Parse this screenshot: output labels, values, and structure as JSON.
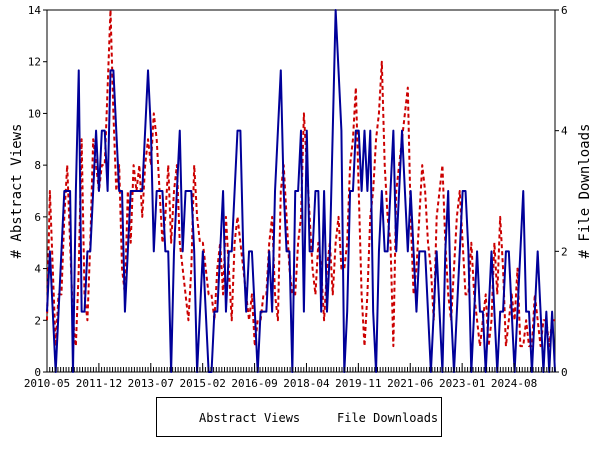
{
  "chart_data": {
    "type": "line",
    "title": "",
    "xlabel": "",
    "ylabel": "# Abstract Views",
    "y2label": "# File Downloads",
    "xlim": [
      "2010-05",
      "2025-11"
    ],
    "ylim": [
      0,
      14
    ],
    "y2lim": [
      0,
      6
    ],
    "x_ticks": [
      "2010-05",
      "2011-12",
      "2013-07",
      "2015-02",
      "2016-09",
      "2018-04",
      "2019-11",
      "2021-06",
      "2023-01",
      "2024-08"
    ],
    "y_ticks": [
      0,
      2,
      4,
      6,
      8,
      10,
      12,
      14
    ],
    "y2_ticks": [
      0,
      2,
      4,
      6
    ],
    "grid": false,
    "legend_position": "bottom-center",
    "series": [
      {
        "name": "Abstract Views",
        "axis": "left",
        "color": "#cc0000",
        "style": "dashed",
        "values": [
          2,
          7,
          4,
          1,
          3,
          3,
          6,
          8,
          5,
          2,
          1,
          4,
          9,
          3,
          2,
          5,
          9,
          8,
          7,
          8,
          8,
          11,
          16,
          10,
          7,
          8,
          4,
          3,
          7,
          5,
          8,
          7,
          8,
          6,
          8,
          9,
          8,
          10,
          9,
          7,
          5,
          6,
          8,
          5,
          7,
          8,
          5,
          4,
          3,
          2,
          4,
          8,
          6,
          5,
          5,
          4,
          3,
          3,
          2,
          4,
          5,
          3,
          6,
          4,
          2,
          5,
          6,
          5,
          4,
          3,
          2,
          3,
          1,
          2,
          2,
          3,
          3,
          5,
          6,
          3,
          2,
          7,
          8,
          6,
          4,
          3,
          3,
          5,
          6,
          10,
          8,
          6,
          4,
          3,
          5,
          4,
          2,
          4,
          5,
          3,
          5,
          6,
          4,
          4,
          5,
          8,
          9,
          11,
          7,
          3,
          1,
          3,
          6,
          7,
          9,
          10,
          12,
          8,
          6,
          5,
          1,
          7,
          8,
          9,
          10,
          11,
          6,
          3,
          4,
          6,
          8,
          7,
          5,
          4,
          2,
          6,
          7,
          8,
          5,
          3,
          2,
          4,
          6,
          7,
          5,
          3,
          3,
          5,
          3,
          2,
          1,
          2,
          3,
          1,
          2,
          5,
          3,
          6,
          4,
          1,
          2,
          3,
          2,
          4,
          1,
          1,
          2,
          1,
          1,
          3,
          2,
          1,
          2,
          2,
          1,
          2,
          2
        ]
      },
      {
        "name": "File Downloads",
        "axis": "right",
        "color": "#000099",
        "style": "solid",
        "values": [
          1,
          2,
          1,
          0,
          1,
          2,
          3,
          3,
          3,
          0,
          3,
          5,
          1,
          1,
          2,
          2,
          3,
          4,
          3,
          4,
          4,
          3,
          5,
          5,
          4,
          3,
          3,
          1,
          2,
          3,
          3,
          3,
          3,
          3,
          4,
          5,
          4,
          2,
          3,
          3,
          3,
          2,
          2,
          0,
          2,
          3,
          4,
          2,
          3,
          3,
          3,
          2,
          0,
          1,
          2,
          1,
          0,
          0,
          1,
          1,
          2,
          3,
          1,
          2,
          2,
          3,
          4,
          4,
          2,
          1,
          2,
          2,
          1,
          0,
          1,
          1,
          1,
          2,
          1,
          3,
          4,
          5,
          3,
          2,
          2,
          0,
          3,
          3,
          4,
          1,
          4,
          2,
          2,
          3,
          3,
          1,
          3,
          1,
          2,
          4,
          6,
          5,
          4,
          0,
          1,
          3,
          3,
          4,
          4,
          3,
          4,
          3,
          4,
          1,
          0,
          2,
          3,
          2,
          2,
          3,
          4,
          2,
          3,
          4,
          3,
          2,
          3,
          2,
          1,
          2,
          2,
          2,
          1,
          0,
          1,
          2,
          1,
          0,
          2,
          3,
          1,
          0,
          1,
          2,
          3,
          3,
          2,
          0,
          1,
          2,
          1,
          1,
          0,
          1,
          2,
          1,
          0,
          1,
          1,
          2,
          2,
          1,
          0,
          1,
          2,
          3,
          1,
          1,
          0,
          1,
          2,
          1,
          0,
          1,
          0,
          1,
          0
        ]
      }
    ]
  },
  "legend": [
    {
      "label": "Abstract Views",
      "color": "#cc0000",
      "style": "dashed"
    },
    {
      "label": "File Downloads",
      "color": "#000099",
      "style": "solid"
    }
  ]
}
